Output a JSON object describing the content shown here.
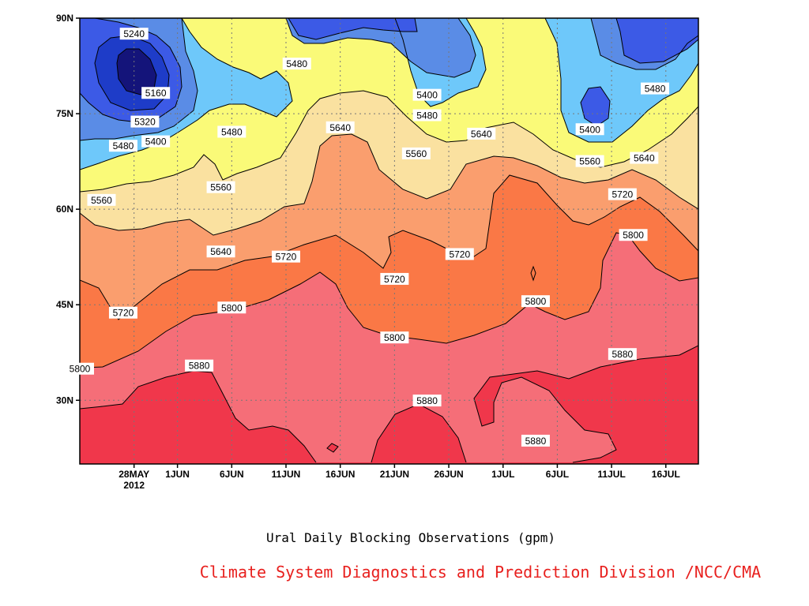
{
  "chart_data": {
    "type": "contour",
    "title": "Ural Daily Blocking Observations (gpm)",
    "credit": "Climate System Diagnostics and Prediction Division /NCC/CMA",
    "xlim": [
      "2012-05-23",
      "2012-07-19"
    ],
    "ylim": [
      20,
      90
    ],
    "y_ticks": [
      {
        "value": 90,
        "label": "90N"
      },
      {
        "value": 75,
        "label": "75N"
      },
      {
        "value": 60,
        "label": "60N"
      },
      {
        "value": 45,
        "label": "45N"
      },
      {
        "value": 30,
        "label": "30N"
      }
    ],
    "x_ticks": [
      {
        "date": "2012-05-28",
        "label": "28MAY",
        "sublabel": "2012"
      },
      {
        "date": "2012-06-01",
        "label": "1JUN"
      },
      {
        "date": "2012-06-06",
        "label": "6JUN"
      },
      {
        "date": "2012-06-11",
        "label": "11JUN"
      },
      {
        "date": "2012-06-16",
        "label": "16JUN"
      },
      {
        "date": "2012-06-21",
        "label": "21JUN"
      },
      {
        "date": "2012-06-26",
        "label": "26JUN"
      },
      {
        "date": "2012-07-01",
        "label": "1JUL"
      },
      {
        "date": "2012-07-06",
        "label": "6JUL"
      },
      {
        "date": "2012-07-11",
        "label": "11JUL"
      },
      {
        "date": "2012-07-16",
        "label": "16JUL"
      }
    ],
    "grid": "dotted",
    "levels": [
      5160,
      5240,
      5320,
      5400,
      5480,
      5560,
      5640,
      5720,
      5800,
      5880
    ],
    "fill_colors": {
      "lt5160": "#14147a",
      "5160": "#1e3cc8",
      "5240": "#3c5ae6",
      "5320": "#5a8ce6",
      "5400": "#6ec8fa",
      "5480": "#fafa78",
      "5560": "#fae1a0",
      "5640": "#fa9e6e",
      "5720": "#fa7846",
      "5800": "#f56e78",
      "5880": "#f0374b"
    },
    "contour_labels": [
      {
        "value": 5240,
        "date": "2012-05-28",
        "lat": 87.5
      },
      {
        "value": 5160,
        "date": "2012-05-30",
        "lat": 78.2
      },
      {
        "value": 5320,
        "date": "2012-05-29",
        "lat": 73.7
      },
      {
        "value": 5400,
        "date": "2012-05-30",
        "lat": 70.6
      },
      {
        "value": 5480,
        "date": "2012-05-27",
        "lat": 69.9
      },
      {
        "value": 5560,
        "date": "2012-05-25",
        "lat": 61.4
      },
      {
        "value": 5480,
        "date": "2012-06-06",
        "lat": 72.1
      },
      {
        "value": 5560,
        "date": "2012-06-05",
        "lat": 63.4
      },
      {
        "value": 5640,
        "date": "2012-06-05",
        "lat": 53.3
      },
      {
        "value": 5720,
        "date": "2012-05-27",
        "lat": 43.7
      },
      {
        "value": 5800,
        "date": "2012-05-23",
        "lat": 34.9
      },
      {
        "value": 5880,
        "date": "2012-06-03",
        "lat": 35.4
      },
      {
        "value": 5800,
        "date": "2012-06-06",
        "lat": 44.5
      },
      {
        "value": 5720,
        "date": "2012-06-11",
        "lat": 52.5
      },
      {
        "value": 5480,
        "date": "2012-06-12",
        "lat": 82.8
      },
      {
        "value": 5640,
        "date": "2012-06-16",
        "lat": 72.8
      },
      {
        "value": 5720,
        "date": "2012-06-21",
        "lat": 49.0
      },
      {
        "value": 5800,
        "date": "2012-06-21",
        "lat": 39.8
      },
      {
        "value": 5880,
        "date": "2012-06-24",
        "lat": 29.9
      },
      {
        "value": 5400,
        "date": "2012-06-24",
        "lat": 77.9
      },
      {
        "value": 5480,
        "date": "2012-06-24",
        "lat": 74.7
      },
      {
        "value": 5560,
        "date": "2012-06-23",
        "lat": 68.7
      },
      {
        "value": 5640,
        "date": "2012-06-29",
        "lat": 71.8
      },
      {
        "value": 5720,
        "date": "2012-06-27",
        "lat": 52.9
      },
      {
        "value": 5800,
        "date": "2012-07-04",
        "lat": 45.5
      },
      {
        "value": 5880,
        "date": "2012-07-04",
        "lat": 23.6
      },
      {
        "value": 5400,
        "date": "2012-07-09",
        "lat": 72.5
      },
      {
        "value": 5560,
        "date": "2012-07-09",
        "lat": 67.5
      },
      {
        "value": 5640,
        "date": "2012-07-14",
        "lat": 68.0
      },
      {
        "value": 5720,
        "date": "2012-07-12",
        "lat": 62.3
      },
      {
        "value": 5800,
        "date": "2012-07-13",
        "lat": 55.9
      },
      {
        "value": 5480,
        "date": "2012-07-15",
        "lat": 78.9
      },
      {
        "value": 5880,
        "date": "2012-07-12",
        "lat": 37.2
      }
    ]
  }
}
